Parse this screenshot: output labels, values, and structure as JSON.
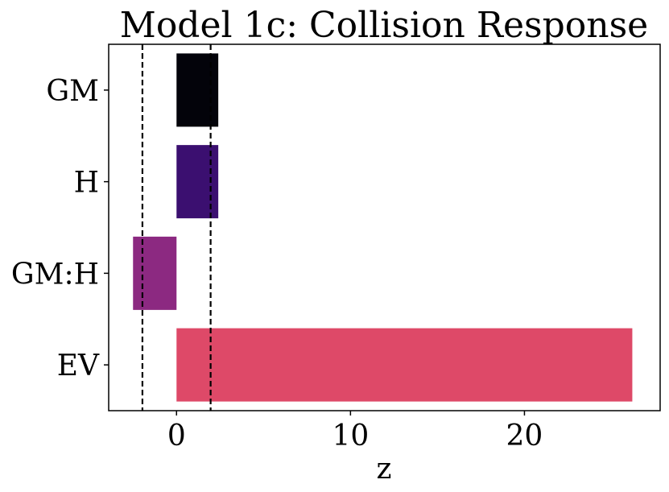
{
  "chart_data": {
    "type": "bar",
    "orientation": "horizontal",
    "title": "Model 1c: Collision Response",
    "xlabel": "z",
    "ylabel": "",
    "categories": [
      "GM",
      "H",
      "GM:H",
      "EV"
    ],
    "values": [
      2.4,
      2.4,
      -2.5,
      26.2
    ],
    "colors": [
      "#03030a",
      "#3b0f70",
      "#8c2981",
      "#de4968"
    ],
    "xlim": [
      -3.9,
      27.8
    ],
    "xticks": [
      0,
      10,
      20
    ],
    "xtick_labels": [
      "0",
      "10",
      "20"
    ],
    "reference_lines": [
      -1.96,
      1.96
    ],
    "reference_line_style": "dashed",
    "grid": false,
    "legend": false
  }
}
